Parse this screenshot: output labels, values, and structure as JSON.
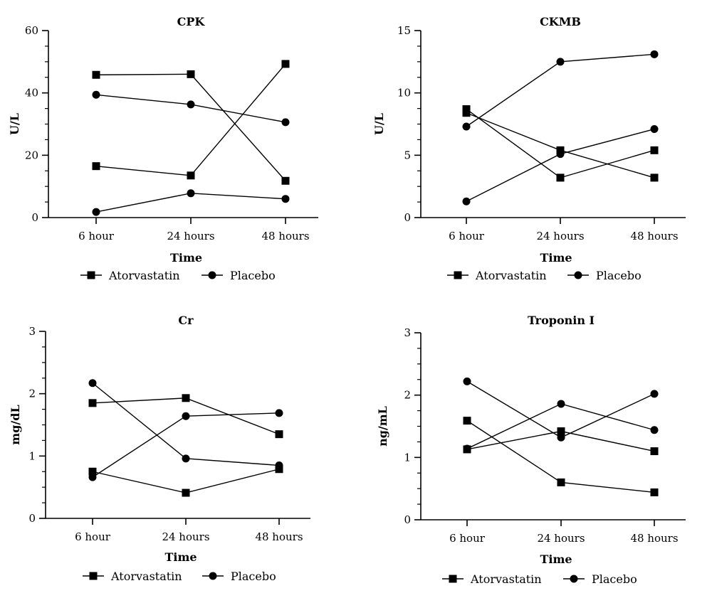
{
  "chart_data": [
    {
      "type": "line",
      "title": "CPK",
      "xlabel": "Time",
      "ylabel": "U/L",
      "categories": [
        "6 hour",
        "24 hours",
        "48 hours"
      ],
      "ylim": [
        0,
        60
      ],
      "yticks": [
        0,
        20,
        40,
        60
      ],
      "ytick_labels": [
        "0",
        "20",
        "40",
        "60"
      ],
      "minor_ticks_per_interval": 4,
      "legend": {
        "position": "bottom",
        "entries": [
          "Atorvastatin",
          "Placebo"
        ]
      },
      "series": [
        {
          "group": "Atorvastatin",
          "marker": "square",
          "values": [
            45.8,
            46.0,
            11.8
          ]
        },
        {
          "group": "Atorvastatin",
          "marker": "square",
          "values": [
            16.5,
            13.5,
            49.3
          ]
        },
        {
          "group": "Placebo",
          "marker": "circle",
          "values": [
            39.4,
            36.3,
            30.6
          ]
        },
        {
          "group": "Placebo",
          "marker": "circle",
          "values": [
            1.8,
            7.8,
            6.0
          ]
        }
      ]
    },
    {
      "type": "line",
      "title": "CKMB",
      "xlabel": "Time",
      "ylabel": "U/L",
      "categories": [
        "6 hour",
        "24 hours",
        "48 hours"
      ],
      "ylim": [
        0,
        15
      ],
      "yticks": [
        0,
        5,
        10,
        15
      ],
      "ytick_labels": [
        "0",
        "5",
        "10",
        "15"
      ],
      "minor_ticks_per_interval": 4,
      "legend": {
        "position": "bottom",
        "entries": [
          "Atorvastatin",
          "Placebo"
        ]
      },
      "series": [
        {
          "group": "Atorvastatin",
          "marker": "square",
          "values": [
            8.7,
            3.2,
            5.4
          ]
        },
        {
          "group": "Atorvastatin",
          "marker": "square",
          "values": [
            8.4,
            5.4,
            3.2
          ]
        },
        {
          "group": "Placebo",
          "marker": "circle",
          "values": [
            7.3,
            12.5,
            13.1
          ]
        },
        {
          "group": "Placebo",
          "marker": "circle",
          "values": [
            1.3,
            5.1,
            7.1
          ]
        }
      ]
    },
    {
      "type": "line",
      "title": "Cr",
      "xlabel": "Time",
      "ylabel": "mg/dL",
      "categories": [
        "6 hour",
        "24 hours",
        "48 hours"
      ],
      "ylim": [
        0,
        3
      ],
      "yticks": [
        0,
        1,
        2,
        3
      ],
      "ytick_labels": [
        "0",
        "1",
        "2",
        "3"
      ],
      "minor_ticks_per_interval": 4,
      "legend": {
        "position": "bottom",
        "entries": [
          "Atorvastatin",
          "Placebo"
        ]
      },
      "series": [
        {
          "group": "Atorvastatin",
          "marker": "square",
          "values": [
            1.85,
            1.93,
            1.35
          ]
        },
        {
          "group": "Atorvastatin",
          "marker": "square",
          "values": [
            0.75,
            0.41,
            0.79
          ]
        },
        {
          "group": "Placebo",
          "marker": "circle",
          "values": [
            2.17,
            0.96,
            0.85
          ]
        },
        {
          "group": "Placebo",
          "marker": "circle",
          "values": [
            0.66,
            1.64,
            1.69
          ]
        }
      ]
    },
    {
      "type": "line",
      "title": "Troponin I",
      "xlabel": "Time",
      "ylabel": "ng/mL",
      "categories": [
        "6 hour",
        "24 hours",
        "48 hours"
      ],
      "ylim": [
        0,
        3
      ],
      "yticks": [
        0,
        1,
        2,
        3
      ],
      "ytick_labels": [
        "0",
        "1",
        "2",
        "3"
      ],
      "minor_ticks_per_interval": 4,
      "legend": {
        "position": "bottom",
        "entries": [
          "Atorvastatin",
          "Placebo"
        ]
      },
      "series": [
        {
          "group": "Atorvastatin",
          "marker": "square",
          "values": [
            1.59,
            0.6,
            0.44
          ]
        },
        {
          "group": "Atorvastatin",
          "marker": "square",
          "values": [
            1.13,
            1.42,
            1.1
          ]
        },
        {
          "group": "Placebo",
          "marker": "circle",
          "values": [
            2.22,
            1.32,
            2.02
          ]
        },
        {
          "group": "Placebo",
          "marker": "circle",
          "values": [
            1.14,
            1.86,
            1.44
          ]
        }
      ]
    }
  ]
}
